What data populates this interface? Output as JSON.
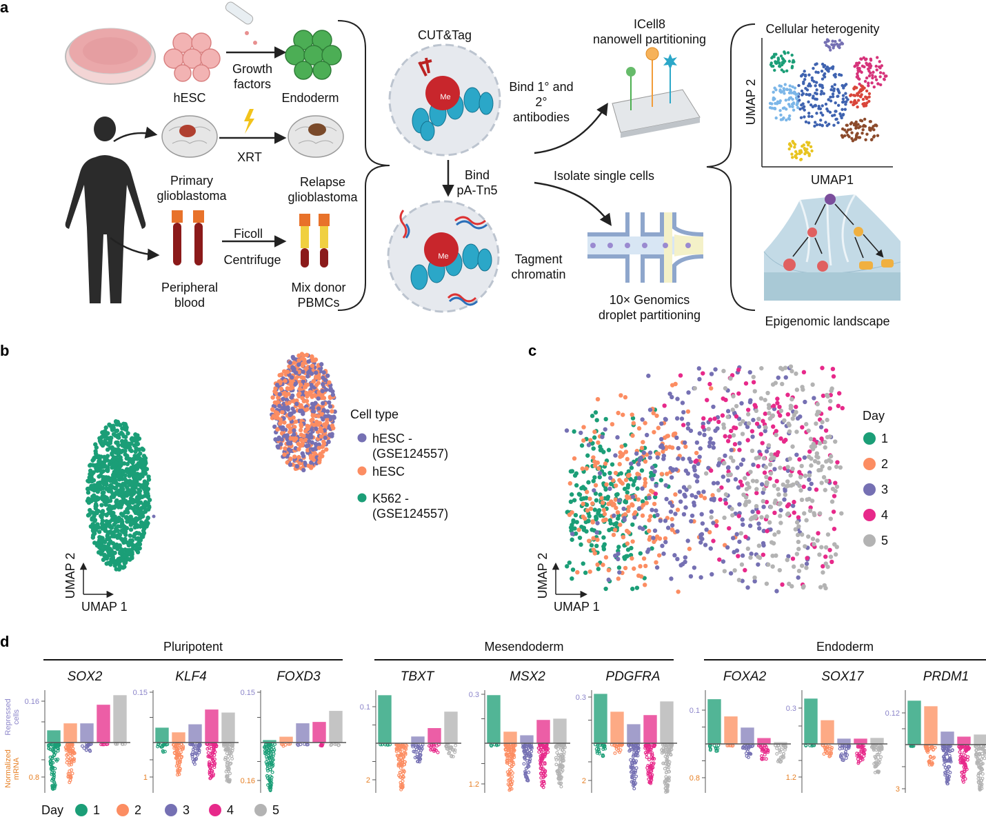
{
  "panel_a": {
    "label": "a",
    "hesc": "hESC",
    "growth_factors": [
      "Growth",
      "factors"
    ],
    "endoderm": "Endoderm",
    "xrt": "XRT",
    "primary_gbm": [
      "Primary",
      "glioblastoma"
    ],
    "relapse_gbm": [
      "Relapse",
      "glioblastoma"
    ],
    "ficoll": "Ficoll",
    "centrifuge": "Centrifuge",
    "peripheral_blood": [
      "Peripheral",
      "blood"
    ],
    "mix_pbmcs": [
      "Mix donor",
      "PBMCs"
    ],
    "cut_tag": "CUT&Tag",
    "bind_antibodies": [
      "Bind 1° and",
      "2°",
      "antibodies"
    ],
    "bind_tn5": [
      "Bind",
      "pA-Tn5"
    ],
    "tagment": [
      "Tagment",
      "chromatin"
    ],
    "me": "Me",
    "icell8": [
      "ICell8",
      "nanowell partitioning"
    ],
    "isolate": "Isolate single cells",
    "tenx": [
      "10× Genomics",
      "droplet partitioning"
    ],
    "heterogeneity": "Cellular heterogenity",
    "umap2": "UMAP 2",
    "umap1": "UMAP1",
    "landscape": "Epigenomic landscape"
  },
  "chart_data": [
    {
      "panel": "b",
      "type": "scatter",
      "xlabel": "UMAP 1",
      "ylabel": "UMAP 2",
      "legend_title": "Cell type",
      "legend_placement": "right",
      "series": [
        {
          "name": "hESC - (GSE124557)",
          "lines": [
            "hESC -",
            "(GSE124557)"
          ],
          "color": "#7570b3"
        },
        {
          "name": "hESC",
          "lines": [
            "hESC"
          ],
          "color": "#fc8d62"
        },
        {
          "name": "K562 - (GSE124557)",
          "lines": [
            "K562 -",
            "(GSE124557)"
          ],
          "color": "#1b9e77"
        }
      ]
    },
    {
      "panel": "c",
      "type": "scatter",
      "xlabel": "UMAP 1",
      "ylabel": "UMAP 2",
      "legend_title": "Day",
      "legend_placement": "right",
      "series": [
        {
          "name": "1",
          "color": "#1b9e77"
        },
        {
          "name": "2",
          "color": "#fc8d62"
        },
        {
          "name": "3",
          "color": "#7570b3"
        },
        {
          "name": "4",
          "color": "#e7298a"
        },
        {
          "name": "5",
          "color": "#b3b3b3"
        }
      ]
    },
    {
      "panel": "d",
      "type": "bar",
      "upper_ylabel": [
        "Repressed",
        "cells"
      ],
      "lower_ylabel": [
        "Normalized",
        "mRNA"
      ],
      "categories": [
        "1",
        "2",
        "3",
        "4",
        "5"
      ],
      "legend_title": "Day",
      "legend_placement": "bottom-left",
      "groups": [
        {
          "name": "Pluripotent",
          "genes": [
            0,
            1,
            2
          ]
        },
        {
          "name": "Mesendoderm",
          "genes": [
            3,
            4,
            5
          ]
        },
        {
          "name": "Endoderm",
          "genes": [
            6,
            7,
            8
          ]
        }
      ],
      "genes": [
        {
          "name": "SOX2",
          "top_tick": "0.16",
          "top_val": 0.16,
          "bottom_tick": "0.8",
          "bottom_val": 0.8,
          "repressed": [
            0.048,
            0.075,
            0.075,
            0.147,
            0.184
          ],
          "mrna_max": [
            1.05,
            0.9,
            0.2,
            0.02,
            0.02
          ]
        },
        {
          "name": "KLF4",
          "top_tick": "0.15",
          "top_val": 0.15,
          "bottom_tick": "1",
          "bottom_val": 1,
          "repressed": [
            0.045,
            0.031,
            0.055,
            0.099,
            0.09
          ],
          "mrna_max": [
            0.25,
            0.95,
            0.6,
            1.0,
            1.1
          ]
        },
        {
          "name": "FOXD3",
          "top_tick": "0.15",
          "top_val": 0.15,
          "bottom_tick": "0.16",
          "bottom_val": 0.16,
          "repressed": [
            0.008,
            0.018,
            0.058,
            0.062,
            0.095
          ],
          "mrna_max": [
            0.2,
            0.01,
            0.01,
            0.01,
            0.01
          ]
        },
        {
          "name": "TBXT",
          "top_tick": "0.1",
          "top_val": 0.1,
          "bottom_tick": "2",
          "bottom_val": 2,
          "repressed": [
            0.132,
            0.0,
            0.019,
            0.042,
            0.087
          ],
          "mrna_max": [
            0.02,
            2.6,
            0.95,
            0.45,
            0.75
          ]
        },
        {
          "name": "MSX2",
          "top_tick": "0.3",
          "top_val": 0.3,
          "bottom_tick": "1.2",
          "bottom_val": 1.2,
          "repressed": [
            0.296,
            0.072,
            0.05,
            0.144,
            0.152
          ],
          "mrna_max": [
            0.05,
            1.4,
            1.1,
            1.3,
            1.25
          ]
        },
        {
          "name": "PDGFRA",
          "top_tick": "0.3",
          "top_val": 0.3,
          "bottom_tick": "2",
          "bottom_val": 2,
          "repressed": [
            0.322,
            0.206,
            0.125,
            0.184,
            0.273
          ],
          "mrna_max": [
            0.65,
            0.6,
            2.4,
            2.1,
            2.6
          ]
        },
        {
          "name": "FOXA2",
          "top_tick": "0.1",
          "top_val": 0.1,
          "bottom_tick": "0.8",
          "bottom_val": 0.8,
          "repressed": [
            0.133,
            0.082,
            0.049,
            0.018,
            0.006
          ],
          "mrna_max": [
            0.15,
            0.02,
            0.3,
            0.35,
            0.4
          ]
        },
        {
          "name": "SOX17",
          "top_tick": "0.3",
          "top_val": 0.3,
          "bottom_tick": "1.2",
          "bottom_val": 1.2,
          "repressed": [
            0.381,
            0.2,
            0.046,
            0.046,
            0.052
          ],
          "mrna_max": [
            0.02,
            0.45,
            0.55,
            0.65,
            1.0
          ]
        },
        {
          "name": "PRDM1",
          "top_tick": "0.12",
          "top_val": 0.12,
          "bottom_tick": "3",
          "bottom_val": 3,
          "repressed": [
            0.167,
            0.146,
            0.05,
            0.031,
            0.039
          ],
          "mrna_max": [
            0.02,
            1.4,
            2.6,
            2.5,
            3.0
          ]
        }
      ],
      "colors": {
        "dots": [
          "#1b9e77",
          "#fc8d62",
          "#7570b3",
          "#e7298a",
          "#b3b3b3"
        ],
        "bars": [
          "#52b596",
          "#fdaa85",
          "#a29ecb",
          "#ec5ea6",
          "#c4c4c4"
        ],
        "upper_axis": "#8a83c9",
        "lower_axis": "#e67e22"
      }
    }
  ],
  "panel_labels": {
    "b": "b",
    "c": "c",
    "d": "d"
  }
}
